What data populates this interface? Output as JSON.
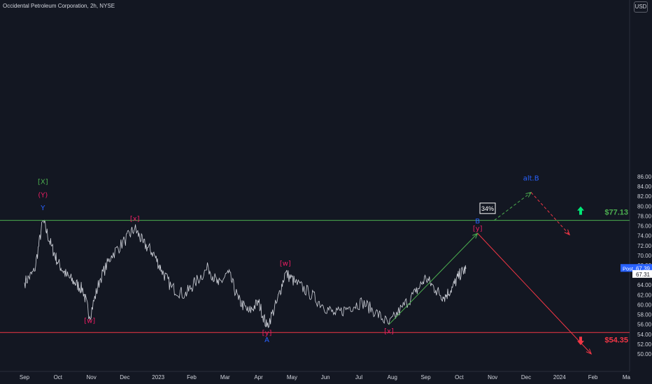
{
  "header": {
    "title": "Occidental Petroleum Corporation, 2h, NYSE",
    "currency": "USD"
  },
  "colors": {
    "background": "#131722",
    "price": "#d1d4dc",
    "green": "#4caf50",
    "bright_green": "#00e676",
    "red": "#f23645",
    "blue": "#2962ff",
    "magenta": "#e91e63"
  },
  "price_tag": {
    "label": "Post",
    "last": "67.39",
    "post": "67.31"
  },
  "chart_data": {
    "type": "line",
    "ylim": [
      49,
      87
    ],
    "yticks": [
      50,
      52,
      54,
      56,
      58,
      60,
      62,
      64,
      66,
      68,
      70,
      72,
      74,
      76,
      78,
      80,
      82,
      84,
      86
    ],
    "xticks": [
      "Sep",
      "Oct",
      "Nov",
      "Dec",
      "2023",
      "Feb",
      "Mar",
      "Apr",
      "May",
      "Jun",
      "Jul",
      "Aug",
      "Sep",
      "Oct",
      "Nov",
      "Dec",
      "2024",
      "Feb",
      "Ma"
    ],
    "price_series": [
      {
        "t": 0,
        "p": 64.5
      },
      {
        "t": 0.3,
        "p": 66.8
      },
      {
        "t": 0.55,
        "p": 77.1
      },
      {
        "t": 0.8,
        "p": 72.0
      },
      {
        "t": 1.0,
        "p": 68.5
      },
      {
        "t": 1.25,
        "p": 66.0
      },
      {
        "t": 1.5,
        "p": 64.5
      },
      {
        "t": 1.75,
        "p": 63.0
      },
      {
        "t": 1.95,
        "p": 57.6
      },
      {
        "t": 2.25,
        "p": 65.0
      },
      {
        "t": 2.6,
        "p": 70.0
      },
      {
        "t": 3.0,
        "p": 73.0
      },
      {
        "t": 3.3,
        "p": 75.5
      },
      {
        "t": 3.55,
        "p": 72.5
      },
      {
        "t": 3.85,
        "p": 70.5
      },
      {
        "t": 4.1,
        "p": 67.0
      },
      {
        "t": 4.4,
        "p": 63.5
      },
      {
        "t": 4.8,
        "p": 62.0
      },
      {
        "t": 5.1,
        "p": 64.5
      },
      {
        "t": 5.5,
        "p": 67.5
      },
      {
        "t": 5.8,
        "p": 64.0
      },
      {
        "t": 6.1,
        "p": 66.5
      },
      {
        "t": 6.4,
        "p": 61.0
      },
      {
        "t": 6.7,
        "p": 58.5
      },
      {
        "t": 7.0,
        "p": 60.5
      },
      {
        "t": 7.25,
        "p": 55.5
      },
      {
        "t": 7.55,
        "p": 60.5
      },
      {
        "t": 7.8,
        "p": 66.5
      },
      {
        "t": 8.1,
        "p": 64.5
      },
      {
        "t": 8.5,
        "p": 62.5
      },
      {
        "t": 8.9,
        "p": 60.0
      },
      {
        "t": 9.3,
        "p": 58.0
      },
      {
        "t": 9.7,
        "p": 59.5
      },
      {
        "t": 10.1,
        "p": 60.5
      },
      {
        "t": 10.5,
        "p": 58.5
      },
      {
        "t": 10.9,
        "p": 56.0
      },
      {
        "t": 11.3,
        "p": 59.5
      },
      {
        "t": 11.7,
        "p": 62.5
      },
      {
        "t": 12.0,
        "p": 65.5
      },
      {
        "t": 12.3,
        "p": 63.0
      },
      {
        "t": 12.55,
        "p": 61.5
      },
      {
        "t": 12.8,
        "p": 63.5
      },
      {
        "t": 13.0,
        "p": 66.0
      },
      {
        "t": 13.2,
        "p": 67.3
      }
    ],
    "levels": [
      {
        "name": "$77.13",
        "value": 77.13,
        "color": "#4caf50",
        "arrow": "up"
      },
      {
        "name": "$54.35",
        "value": 54.35,
        "color": "#f23645",
        "arrow": "down"
      }
    ],
    "paths": [
      {
        "style": "solid",
        "color": "#4caf50",
        "points": [
          [
            10.9,
            56.0
          ],
          [
            13.55,
            74.5
          ]
        ]
      },
      {
        "style": "solid",
        "color": "#f23645",
        "points": [
          [
            13.55,
            74.5
          ],
          [
            16.95,
            50.0
          ]
        ]
      },
      {
        "style": "dashed",
        "color": "#4caf50",
        "points": [
          [
            14.05,
            77.13
          ],
          [
            15.15,
            82.8
          ]
        ]
      },
      {
        "style": "dashed",
        "color": "#f23645",
        "points": [
          [
            15.15,
            82.8
          ],
          [
            16.3,
            74.2
          ]
        ]
      }
    ],
    "annotations": [
      {
        "text": "[X]",
        "t": 0.55,
        "p": 84.5,
        "color": "#4caf50"
      },
      {
        "text": "(Y)",
        "t": 0.55,
        "p": 81.8,
        "color": "#e91e63"
      },
      {
        "text": "Y",
        "t": 0.55,
        "p": 79.2,
        "color": "#2962ff"
      },
      {
        "text": "[x]",
        "t": 3.3,
        "p": 77.0,
        "color": "#e91e63"
      },
      {
        "text": "[w]",
        "t": 1.95,
        "p": 56.3,
        "color": "#e91e63"
      },
      {
        "text": "[w]",
        "t": 7.8,
        "p": 67.9,
        "color": "#e91e63"
      },
      {
        "text": "[y]",
        "t": 7.25,
        "p": 53.8,
        "color": "#e91e63"
      },
      {
        "text": "A",
        "t": 7.25,
        "p": 52.4,
        "color": "#2962ff"
      },
      {
        "text": "[x]",
        "t": 10.9,
        "p": 54.2,
        "color": "#e91e63"
      },
      {
        "text": "B",
        "t": 13.55,
        "p": 76.5,
        "color": "#2962ff"
      },
      {
        "text": "[y]",
        "t": 13.55,
        "p": 75.0,
        "color": "#e91e63"
      },
      {
        "text": "alt.B",
        "t": 15.15,
        "p": 85.2,
        "color": "#2962ff"
      }
    ],
    "badge": {
      "text": "34%",
      "t": 13.85,
      "p": 79.5
    }
  }
}
